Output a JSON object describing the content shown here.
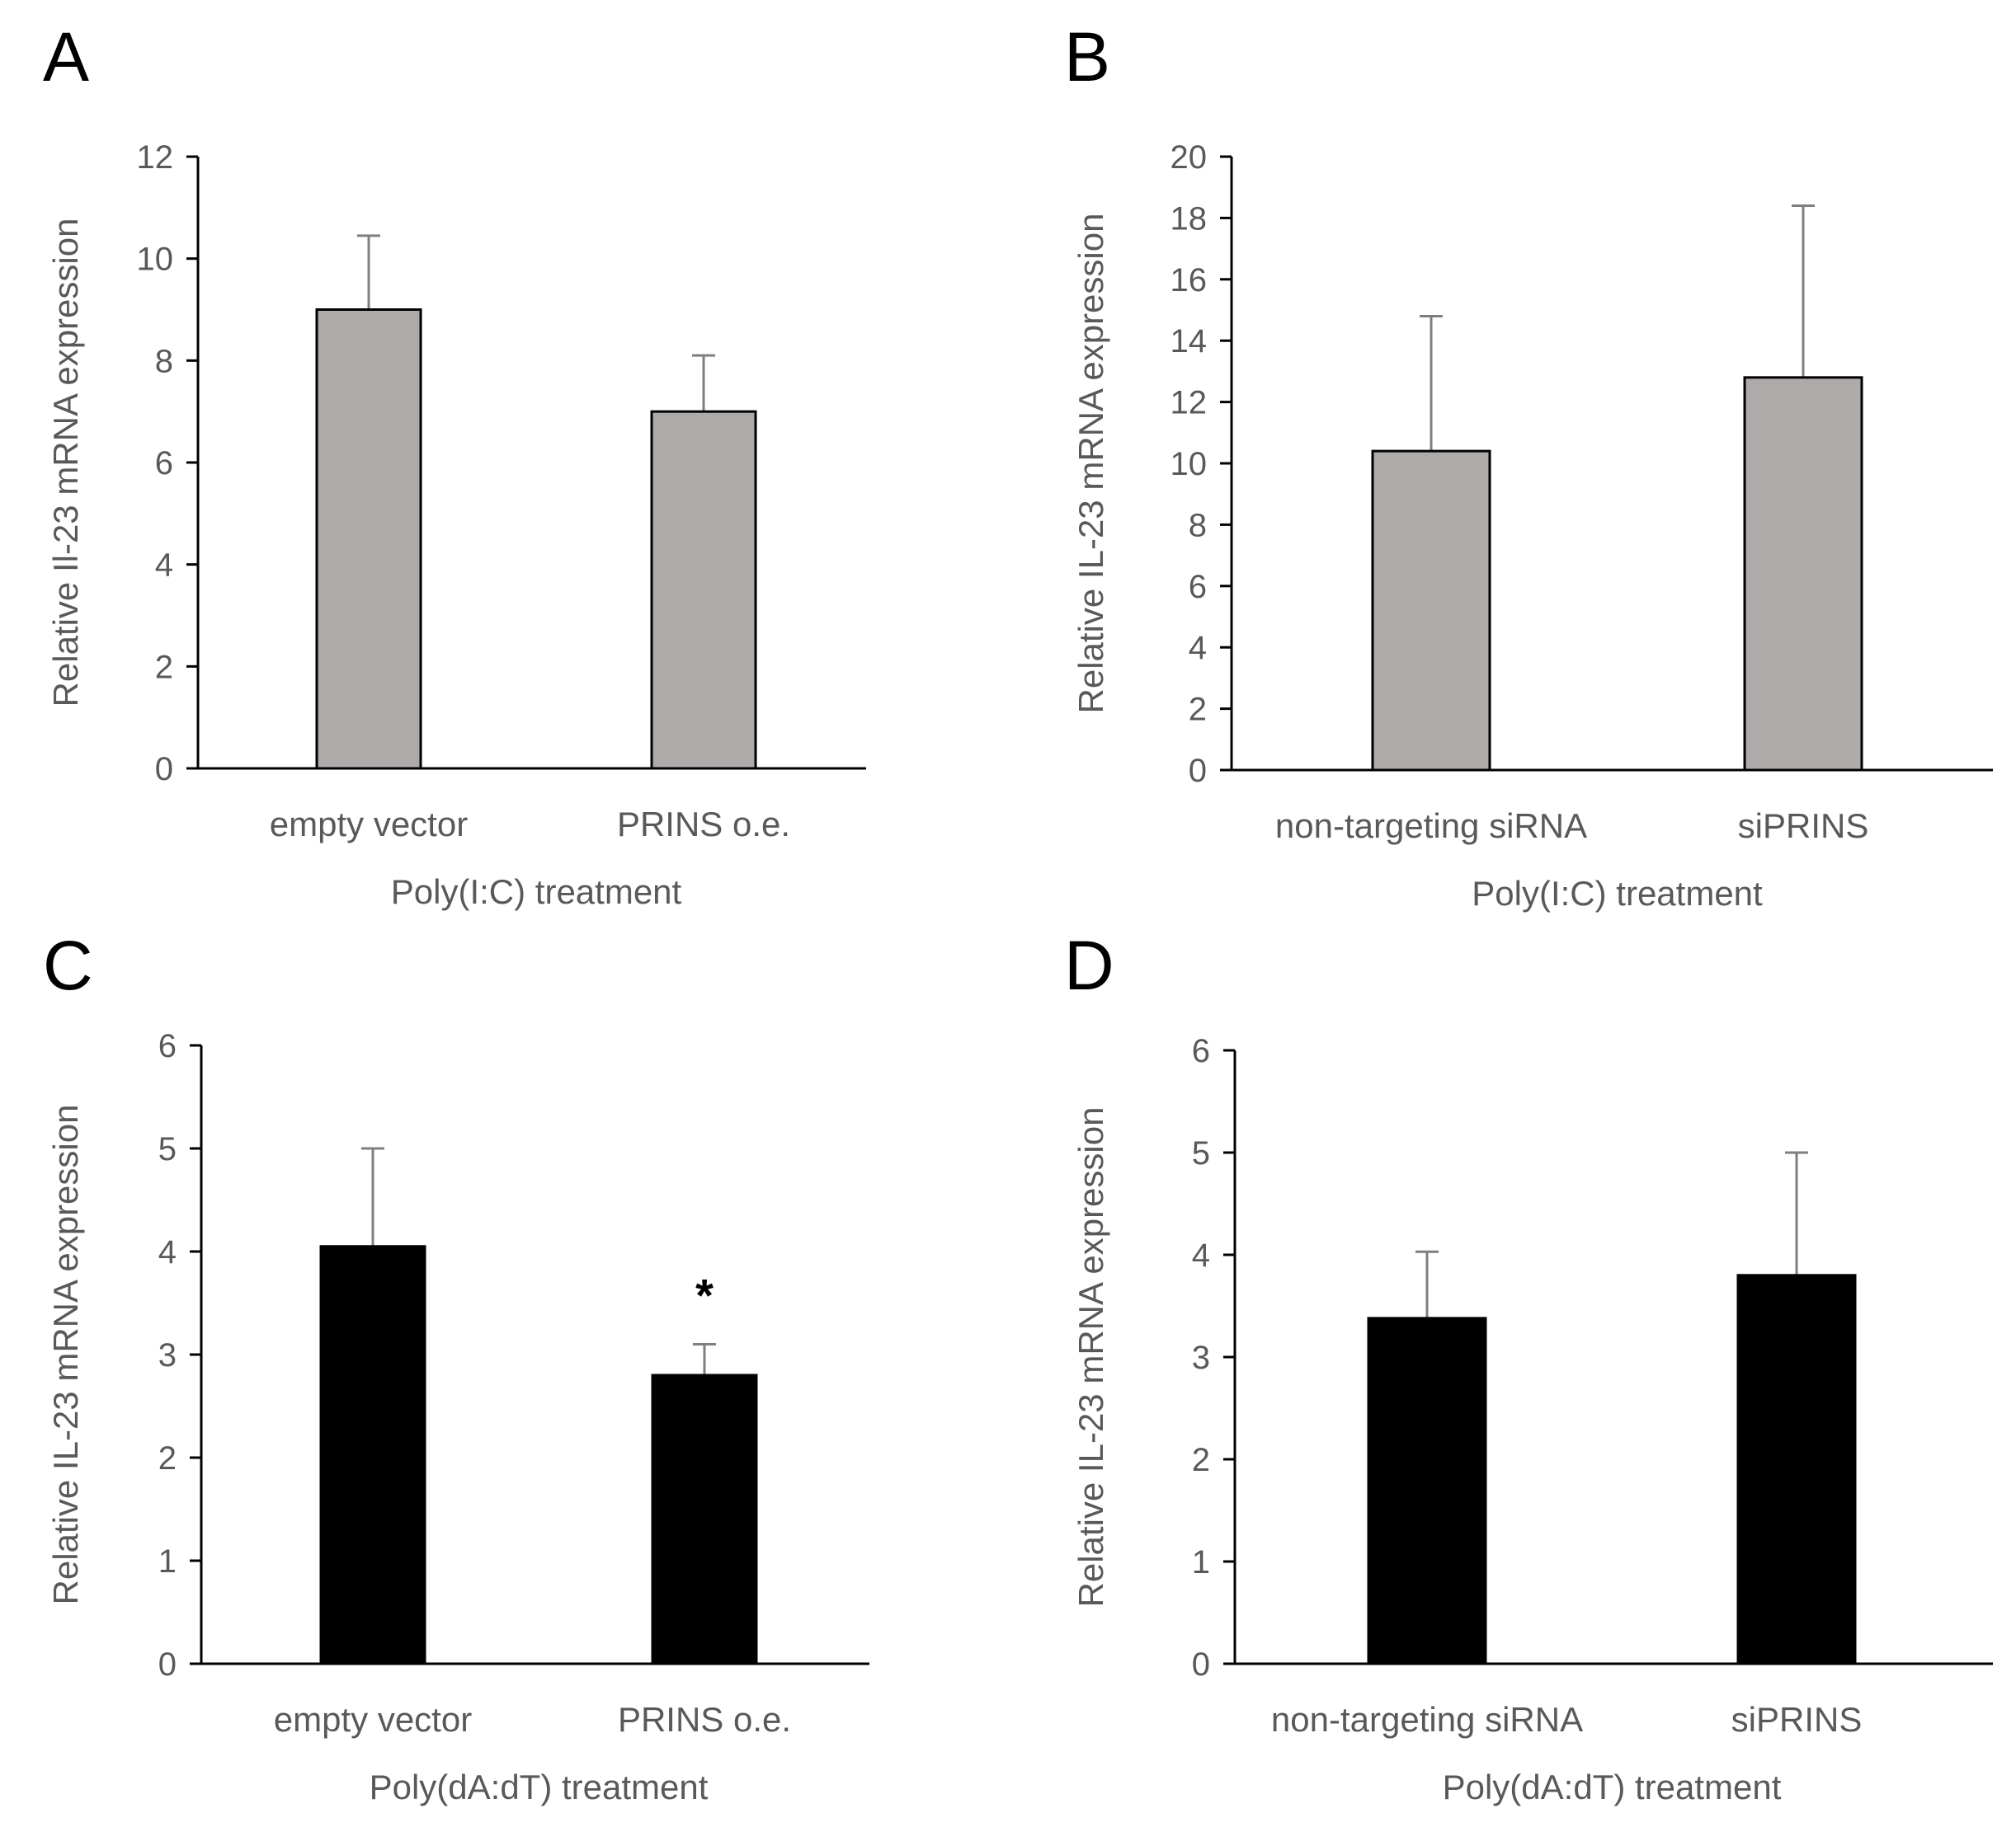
{
  "chart_data": [
    {
      "panel": "A",
      "type": "bar",
      "categories": [
        "empty vector",
        "PRINS o.e."
      ],
      "values": [
        9.0,
        7.0
      ],
      "errors": [
        1.45,
        1.1
      ],
      "xlabel": "Poly(I:C) treatment",
      "ylabel": "Relative Il-23 mRNA expression",
      "ylim": [
        0,
        12
      ],
      "yticks": [
        0,
        2,
        4,
        6,
        8,
        10,
        12
      ],
      "bar_color": "#aeaaaa",
      "annotations": []
    },
    {
      "panel": "B",
      "type": "bar",
      "categories": [
        "non-targeting siRNA",
        "siPRINS"
      ],
      "values": [
        10.4,
        12.8
      ],
      "errors": [
        4.4,
        5.6
      ],
      "xlabel": "Poly(I:C) treatment",
      "ylabel": "Relative IL-23 mRNA expression",
      "ylim": [
        0,
        20
      ],
      "yticks": [
        0,
        2,
        4,
        6,
        8,
        10,
        12,
        14,
        16,
        18,
        20
      ],
      "bar_color": "#aeaaaa",
      "annotations": []
    },
    {
      "panel": "C",
      "type": "bar",
      "categories": [
        "empty vector",
        "PRINS o.e."
      ],
      "values": [
        4.05,
        2.8
      ],
      "errors": [
        0.95,
        0.3
      ],
      "xlabel": "Poly(dA:dT) treatment",
      "ylabel": "Relative IL-23 mRNA expression",
      "ylim": [
        0,
        6
      ],
      "yticks": [
        0,
        1,
        2,
        3,
        4,
        5,
        6
      ],
      "bar_color": "#000000",
      "annotations": [
        "",
        "*"
      ]
    },
    {
      "panel": "D",
      "type": "bar",
      "categories": [
        "non-targeting siRNA",
        "siPRINS"
      ],
      "values": [
        3.38,
        3.8
      ],
      "errors": [
        0.65,
        1.2
      ],
      "xlabel": "Poly(dA:dT) treatment",
      "ylabel": "Relative IL-23 mRNA expression",
      "ylim": [
        0,
        6
      ],
      "yticks": [
        0,
        1,
        2,
        3,
        4,
        5,
        6
      ],
      "bar_color": "#000000",
      "annotations": []
    }
  ]
}
